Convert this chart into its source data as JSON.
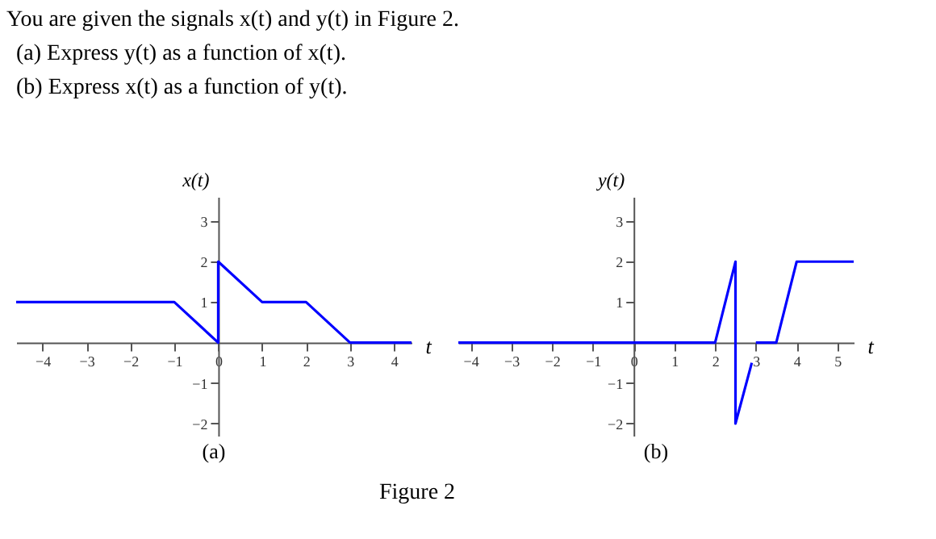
{
  "chart_data": [
    {
      "type": "line",
      "title": "(a)",
      "xlabel": "t",
      "ylabel": "x(t)",
      "annotations": [
        "You are given the signals x(t) and y(t) in Figure 2.",
        "(a) Express y(t) as a function of x(t).",
        "(b) Express x(t) as a function of y(t).",
        "Figure 2"
      ],
      "x": [
        -4.6,
        -1,
        0,
        0,
        1,
        2,
        3,
        4.4
      ],
      "series": [
        {
          "color": "#0000ff",
          "values": [
            1,
            1,
            0,
            2,
            1,
            1,
            0,
            0
          ]
        }
      ],
      "xlim": [
        -4.6,
        4.4
      ],
      "ylim": [
        -2.3,
        3.6
      ],
      "xticks": [
        -4,
        -3,
        -2,
        -1,
        0,
        1,
        2,
        3,
        4
      ],
      "yticks": [
        -2,
        -1,
        1,
        2,
        3
      ],
      "grid": false,
      "legend": false
    },
    {
      "type": "line",
      "title": "(b)",
      "xlabel": "t",
      "ylabel": "y(t)",
      "x": [
        -4.3,
        2,
        2.5,
        2.5,
        2.9,
        2.95,
        3,
        3.5,
        4,
        5.4
      ],
      "series": [
        {
          "color": "#0000ff",
          "values": [
            0,
            0,
            2,
            -2,
            -0.5,
            null,
            0,
            0,
            2,
            2
          ]
        }
      ],
      "xlim": [
        -4.3,
        5.4
      ],
      "ylim": [
        -2.3,
        3.6
      ],
      "xticks": [
        -4,
        -3,
        -2,
        -1,
        0,
        1,
        2,
        3,
        4,
        5
      ],
      "yticks": [
        -2,
        -1,
        1,
        2,
        3
      ],
      "grid": false,
      "legend": false
    }
  ]
}
